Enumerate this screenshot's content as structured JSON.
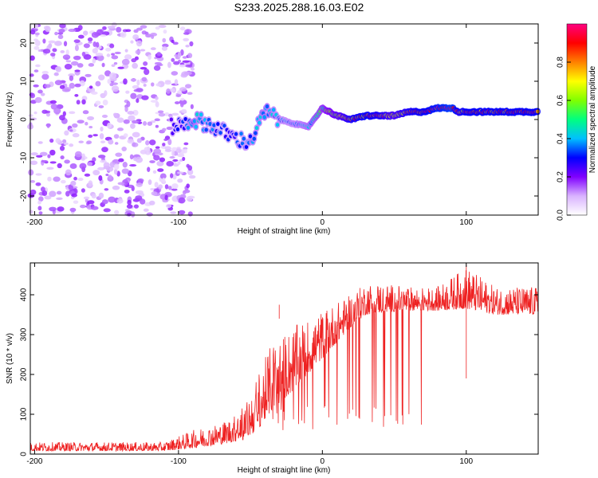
{
  "title": "S233.2025.288.16.03.E02",
  "chart_data": [
    {
      "type": "heatmap",
      "name": "spectrogram",
      "xlabel": "Height of straight line (km)",
      "ylabel": "Frequency (Hz)",
      "xlim": [
        -203,
        150
      ],
      "ylim": [
        -25,
        25
      ],
      "x_ticks": [
        -200,
        -100,
        0,
        100
      ],
      "y_ticks": [
        -20,
        -10,
        0,
        10,
        20
      ],
      "colorbar": {
        "label": "Normalized spectral amplitude",
        "range": [
          0,
          1
        ],
        "ticks": [
          "0.0",
          "0.2",
          "0.4",
          "0.6",
          "0.8"
        ],
        "colors": [
          "#ffffff",
          "#d9b3ff",
          "#8000ff",
          "#0000ff",
          "#00c0ff",
          "#00ff80",
          "#80ff00",
          "#ffff00",
          "#ff8000",
          "#ff0000",
          "#ff0080"
        ]
      },
      "noise_region": {
        "x_range": [
          -203,
          -100
        ],
        "freq_range": [
          -25,
          25
        ],
        "amplitude": 0.1
      },
      "signal_track": {
        "x": [
          -105,
          -95,
          -90,
          -80,
          -70,
          -60,
          -50,
          -40,
          -30,
          -20,
          -10,
          0,
          10,
          20,
          30,
          40,
          50,
          60,
          70,
          80,
          90,
          95,
          100,
          110,
          120,
          130,
          140,
          150
        ],
        "freq": [
          -2,
          -1,
          0,
          -1,
          -3,
          -5,
          -6,
          2,
          0,
          -1,
          -2,
          3,
          1,
          0,
          1,
          1,
          1,
          2,
          2,
          3,
          3,
          2,
          2,
          2,
          2,
          2,
          2,
          2
        ],
        "amplitude": [
          0.25,
          0.3,
          0.4,
          0.35,
          0.3,
          0.3,
          0.35,
          0.4,
          0.35,
          0.35,
          0.4,
          0.5,
          0.65,
          0.8,
          0.85,
          0.8,
          0.7,
          0.8,
          0.85,
          0.9,
          0.95,
          0.8,
          0.85,
          0.85,
          0.85,
          0.85,
          0.85,
          0.85
        ]
      }
    },
    {
      "type": "line",
      "name": "snr",
      "xlabel": "Height of straight line (km)",
      "ylabel": "SNR (10 * v/v)",
      "xlim": [
        -203,
        150
      ],
      "ylim": [
        0,
        480
      ],
      "x_ticks": [
        -200,
        -100,
        0,
        100
      ],
      "y_ticks": [
        0,
        100,
        200,
        300,
        400
      ],
      "color": "#ee2222",
      "envelope": {
        "x": [
          -203,
          -150,
          -110,
          -90,
          -70,
          -55,
          -45,
          -35,
          -20,
          -10,
          0,
          10,
          20,
          30,
          40,
          60,
          80,
          100,
          120,
          150
        ],
        "baseline": [
          8,
          8,
          8,
          15,
          25,
          35,
          60,
          110,
          160,
          200,
          240,
          280,
          320,
          350,
          355,
          360,
          360,
          365,
          350,
          350
        ],
        "peak": [
          30,
          30,
          30,
          60,
          80,
          110,
          200,
          280,
          320,
          340,
          360,
          380,
          400,
          430,
          430,
          420,
          420,
          470,
          420,
          420
        ]
      },
      "notable_points": [
        {
          "x": 100,
          "y": 475
        },
        {
          "x": 100,
          "y": 190
        },
        {
          "x": -30,
          "y": 375
        }
      ]
    }
  ]
}
